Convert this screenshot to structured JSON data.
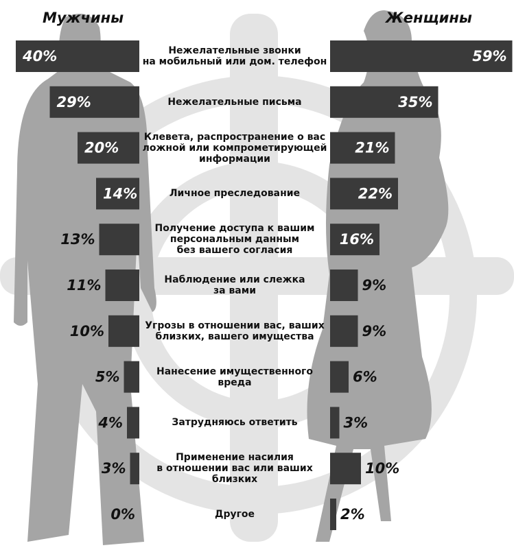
{
  "chart_data": {
    "type": "butterfly-bar",
    "categories": [
      "Нежелательные звонки\nна мобильный или дом. телефон",
      "Нежелательные письма",
      "Клевета, распространение о вас\nложной или компрометирующей\nинформации",
      "Личное преследование",
      "Получение доступа к вашим\nперсональным данным\nбез вашего согласия",
      "Наблюдение или слежка\nза вами",
      "Угрозы в отношении вас, ваших\nблизких, вашего имущества",
      "Нанесение имущественного\nвреда",
      "Затрудняюсь ответить",
      "Применение насилия\nв отношении вас или ваших\nблизких",
      "Другое"
    ],
    "series": [
      {
        "name": "Мужчины",
        "color": "#3a3a3a",
        "values": [
          40,
          29,
          20,
          14,
          13,
          11,
          10,
          5,
          4,
          3,
          0
        ],
        "value_labels": [
          "40%",
          "29%",
          "20%",
          "14%",
          "13%",
          "11%",
          "10%",
          "5%",
          "4%",
          "3%",
          "0%"
        ]
      },
      {
        "name": "Женщины",
        "color": "#3a3a3a",
        "values": [
          59,
          35,
          21,
          22,
          16,
          9,
          9,
          6,
          3,
          10,
          2
        ],
        "value_labels": [
          "59%",
          "35%",
          "21%",
          "22%",
          "16%",
          "9%",
          "9%",
          "6%",
          "3%",
          "10%",
          "2%"
        ]
      }
    ]
  }
}
